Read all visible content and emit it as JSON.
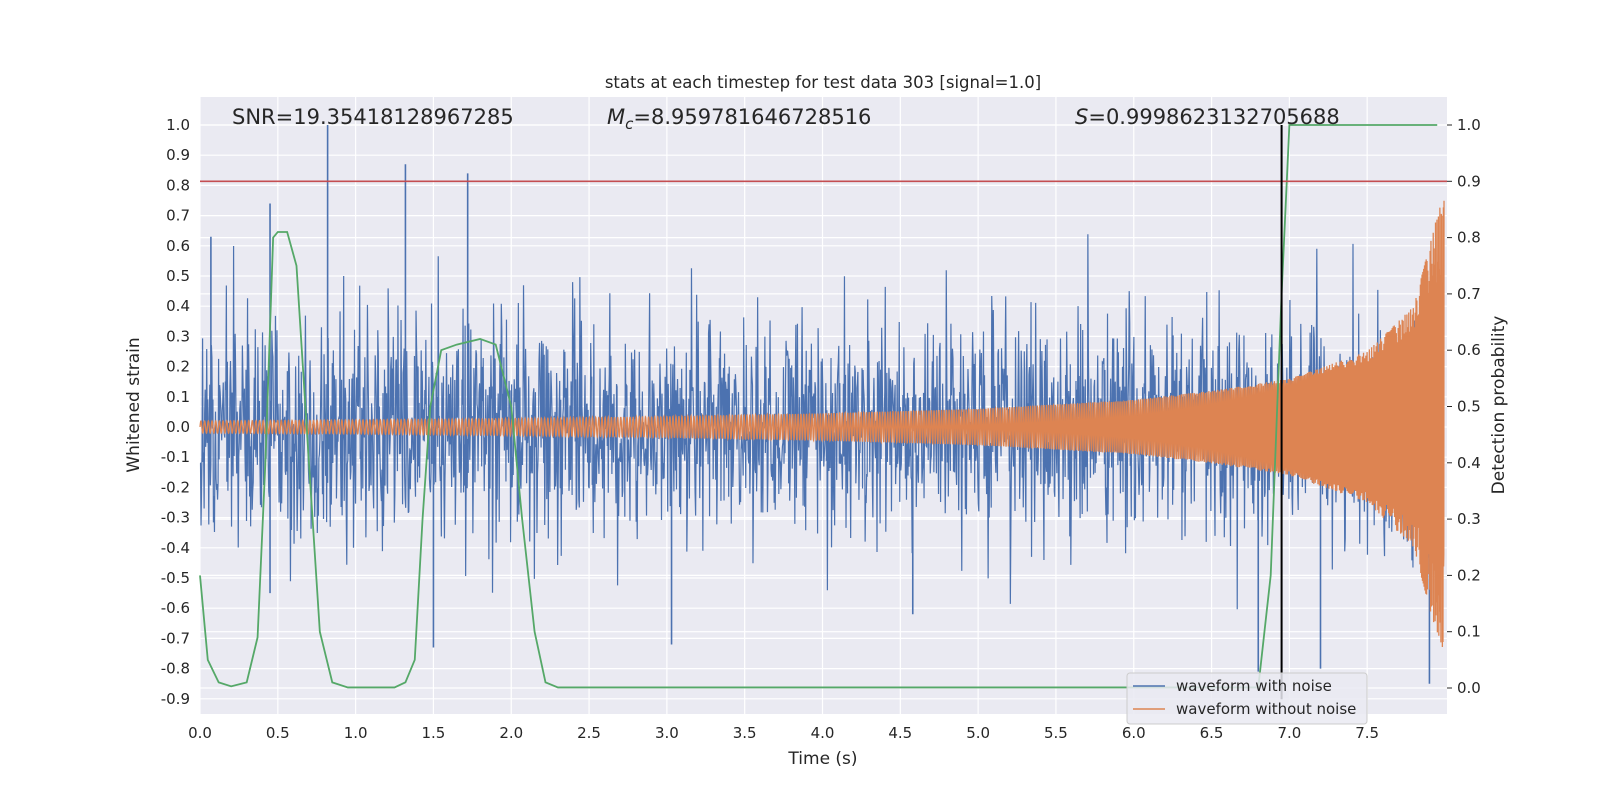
{
  "chart_data": {
    "type": "line",
    "title": "stats at each timestep for test data 303 [signal=1.0]",
    "xlabel": "Time (s)",
    "ylabel": "Whitened strain",
    "y2label": "Detection probability",
    "xlim": [
      0.0,
      8.0
    ],
    "ylim": [
      -0.95,
      1.08
    ],
    "y2lim": [
      -0.05,
      1.05
    ],
    "x_ticks": [
      "0.0",
      "0.5",
      "1.0",
      "1.5",
      "2.0",
      "2.5",
      "3.0",
      "3.5",
      "4.0",
      "4.5",
      "5.0",
      "5.5",
      "6.0",
      "6.5",
      "7.0",
      "7.5"
    ],
    "y_ticks": [
      "1.0",
      "0.9",
      "0.8",
      "0.7",
      "0.6",
      "0.5",
      "0.4",
      "0.3",
      "0.2",
      "0.1",
      "0.0",
      "-0.1",
      "-0.2",
      "-0.3",
      "-0.4",
      "-0.5",
      "-0.6",
      "-0.7",
      "-0.8",
      "-0.9"
    ],
    "y2_ticks": [
      "1.0",
      "0.9",
      "0.8",
      "0.7",
      "0.6",
      "0.5",
      "0.4",
      "0.3",
      "0.2",
      "0.1",
      "0.0"
    ],
    "grid": true,
    "legend_position": "lower-right",
    "annotations": {
      "snr": "SNR=19.35418128967285",
      "mc_symbol": "M",
      "mc_sub": "c",
      "mc_value": "=8.959781646728516",
      "s_symbol": "S",
      "s_value": "=0.9998623132705688"
    },
    "threshold_y2": 0.9,
    "merger_time": 6.95,
    "series": [
      {
        "name": "waveform with noise",
        "color": "#4c72b0",
        "envelope_points": [
          [
            0.0,
            0.33
          ],
          [
            1.0,
            0.33
          ],
          [
            2.0,
            0.33
          ],
          [
            3.0,
            0.33
          ],
          [
            4.0,
            0.33
          ],
          [
            5.0,
            0.33
          ],
          [
            6.0,
            0.33
          ],
          [
            7.0,
            0.33
          ],
          [
            8.0,
            0.33
          ]
        ],
        "spikes": [
          [
            0.07,
            0.63
          ],
          [
            0.45,
            0.74
          ],
          [
            0.82,
            1.0
          ],
          [
            1.32,
            0.87
          ],
          [
            1.72,
            0.84
          ],
          [
            0.45,
            -0.55
          ],
          [
            1.5,
            -0.73
          ],
          [
            3.03,
            -0.72
          ],
          [
            4.58,
            -0.62
          ],
          [
            6.8,
            -0.81
          ],
          [
            7.2,
            -0.8
          ],
          [
            7.9,
            -0.85
          ]
        ]
      },
      {
        "name": "waveform without noise",
        "color": "#dd8452",
        "amplitude_points": [
          [
            0.0,
            0.02
          ],
          [
            1.0,
            0.023
          ],
          [
            2.0,
            0.028
          ],
          [
            3.0,
            0.035
          ],
          [
            4.0,
            0.045
          ],
          [
            5.0,
            0.06
          ],
          [
            6.0,
            0.09
          ],
          [
            6.5,
            0.12
          ],
          [
            7.0,
            0.16
          ],
          [
            7.5,
            0.25
          ],
          [
            7.8,
            0.4
          ],
          [
            7.95,
            0.7
          ],
          [
            8.0,
            0.78
          ]
        ]
      },
      {
        "name": "detection probability",
        "axis": "y2",
        "color": "#55a868",
        "points": [
          [
            0.0,
            0.2
          ],
          [
            0.05,
            0.05
          ],
          [
            0.12,
            0.01
          ],
          [
            0.2,
            0.003
          ],
          [
            0.3,
            0.01
          ],
          [
            0.37,
            0.09
          ],
          [
            0.42,
            0.4
          ],
          [
            0.47,
            0.8
          ],
          [
            0.5,
            0.81
          ],
          [
            0.56,
            0.81
          ],
          [
            0.62,
            0.75
          ],
          [
            0.7,
            0.4
          ],
          [
            0.77,
            0.1
          ],
          [
            0.85,
            0.01
          ],
          [
            0.95,
            0.001
          ],
          [
            1.25,
            0.001
          ],
          [
            1.32,
            0.01
          ],
          [
            1.38,
            0.05
          ],
          [
            1.43,
            0.3
          ],
          [
            1.48,
            0.5
          ],
          [
            1.55,
            0.6
          ],
          [
            1.65,
            0.61
          ],
          [
            1.8,
            0.62
          ],
          [
            1.9,
            0.61
          ],
          [
            2.0,
            0.5
          ],
          [
            2.07,
            0.3
          ],
          [
            2.15,
            0.1
          ],
          [
            2.22,
            0.01
          ],
          [
            2.3,
            0.001
          ],
          [
            6.8,
            0.001
          ],
          [
            6.88,
            0.2
          ],
          [
            6.95,
            0.7
          ],
          [
            7.0,
            1.0
          ],
          [
            7.95,
            1.0
          ]
        ]
      }
    ]
  },
  "legend": [
    {
      "label": "waveform with noise",
      "color": "#4c72b0"
    },
    {
      "label": "waveform without noise",
      "color": "#dd8452"
    }
  ],
  "colors": {
    "plot_background": "#eaeaf2",
    "grid": "#ffffff",
    "threshold_line": "#c44e52",
    "merger_line": "#000000"
  }
}
